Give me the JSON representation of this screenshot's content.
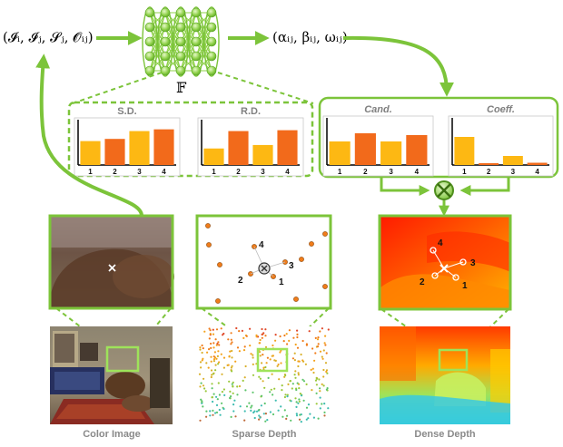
{
  "equations": {
    "input": "(𝓘ᵢ, 𝓘ⱼ, 𝓢ⱼ, 𝓞ᵢⱼ)",
    "output": "(αᵢⱼ, βᵢⱼ, ωᵢⱼ)",
    "network_symbol": "𝔽"
  },
  "bar_panels": [
    {
      "title": "S.D.",
      "italic": false,
      "values": [
        0.55,
        0.6,
        0.78,
        0.82
      ]
    },
    {
      "title": "R.D.",
      "italic": false,
      "values": [
        0.38,
        0.78,
        0.46,
        0.8
      ]
    },
    {
      "title": "Cand.",
      "italic": true,
      "values": [
        0.52,
        0.7,
        0.52,
        0.66
      ]
    },
    {
      "title": "Coeff.",
      "italic": true,
      "values": [
        0.62,
        0.04,
        0.2,
        0.05
      ]
    }
  ],
  "bar_categories": [
    "1",
    "2",
    "3",
    "4"
  ],
  "bottom_labels": {
    "color_image": "Color Image",
    "sparse_depth": "Sparse Depth",
    "dense_depth": "Dense Depth"
  },
  "point_labels": [
    "1",
    "2",
    "3",
    "4"
  ],
  "colors": {
    "accent_green": "#7cc43a",
    "bar_light": "#fdb813",
    "bar_dark": "#f26a1b",
    "bar_title": "#7f7f7f",
    "label_gray": "#8a8a8a"
  }
}
